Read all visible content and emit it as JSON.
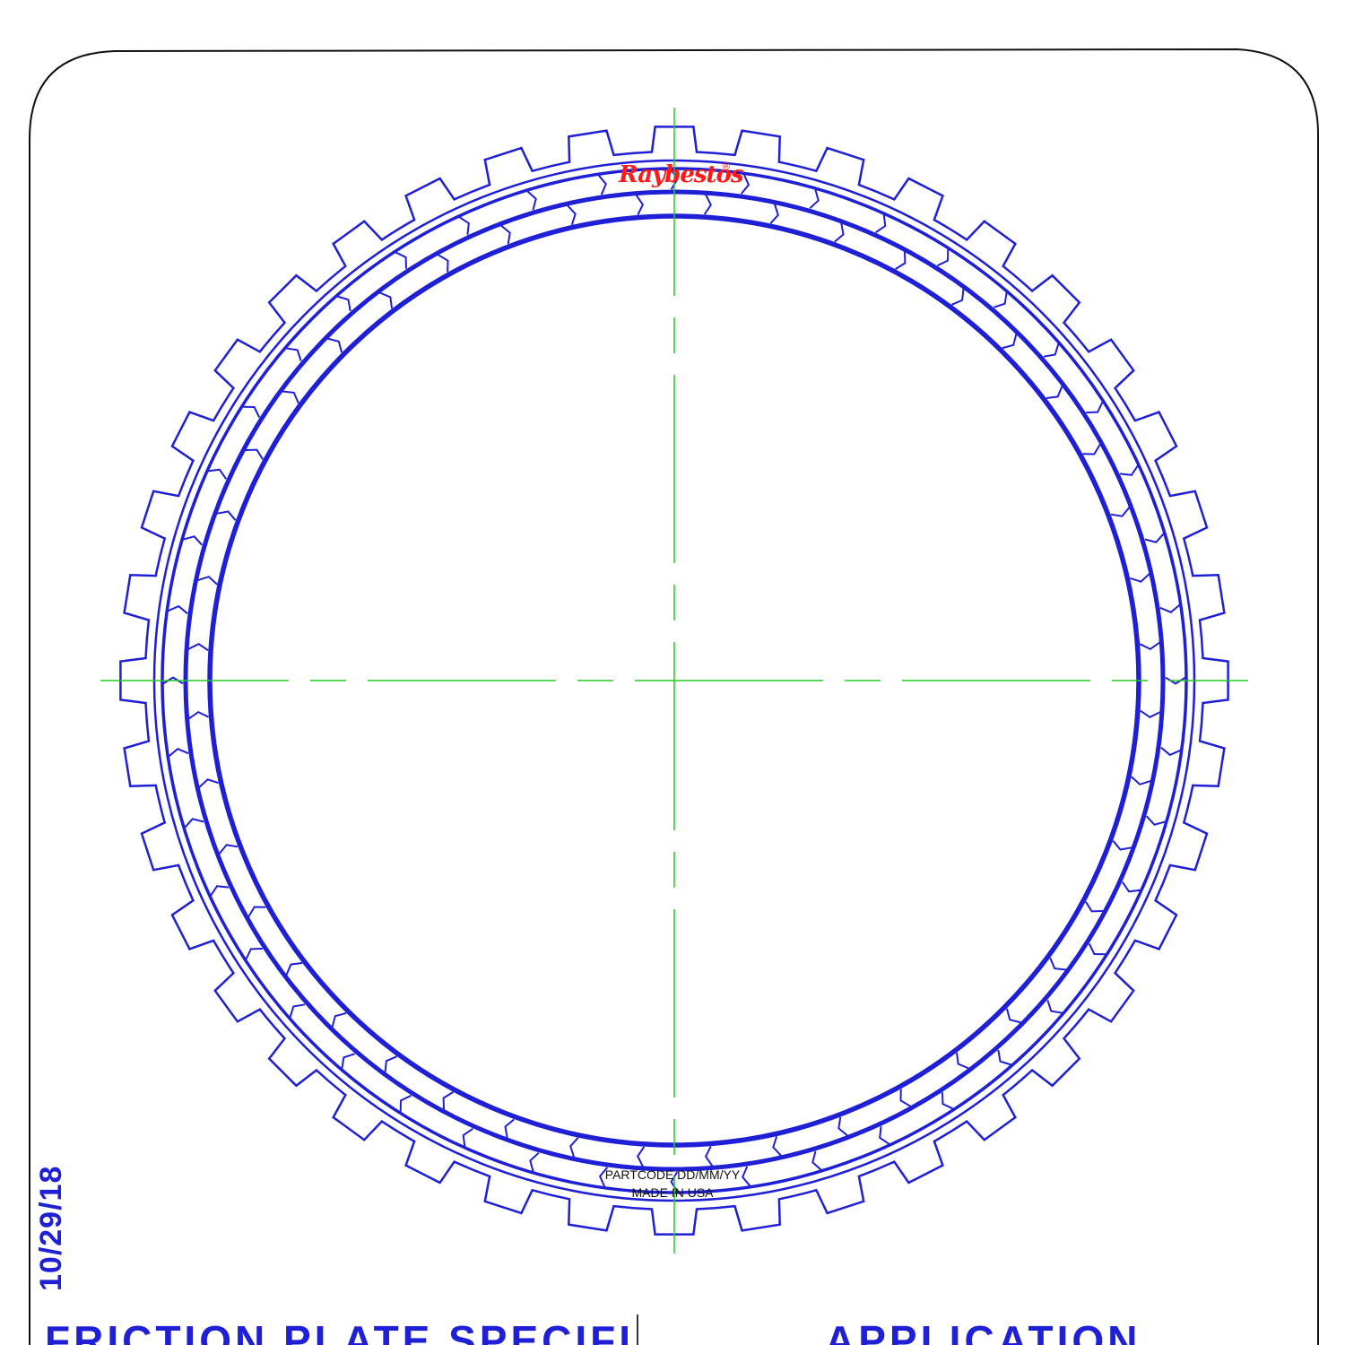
{
  "drawing": {
    "date": "10/29/18",
    "section_left_title": "FRICTION PLATE SPECIFICS",
    "section_right_title": "APPLICATION"
  },
  "part_marking": {
    "line1": "PARTCODE DD/MM/YY",
    "line2": "MADE IN USA"
  },
  "logo": {
    "text": "Raybestos",
    "registered_mark": "®",
    "color": "#ff1a1a"
  },
  "colors": {
    "plate_outline": "#1f1fd6",
    "centerline": "#22cc22",
    "border": "#111111"
  },
  "plate": {
    "tooth_count": 40,
    "friction_segment_rings": 2
  }
}
